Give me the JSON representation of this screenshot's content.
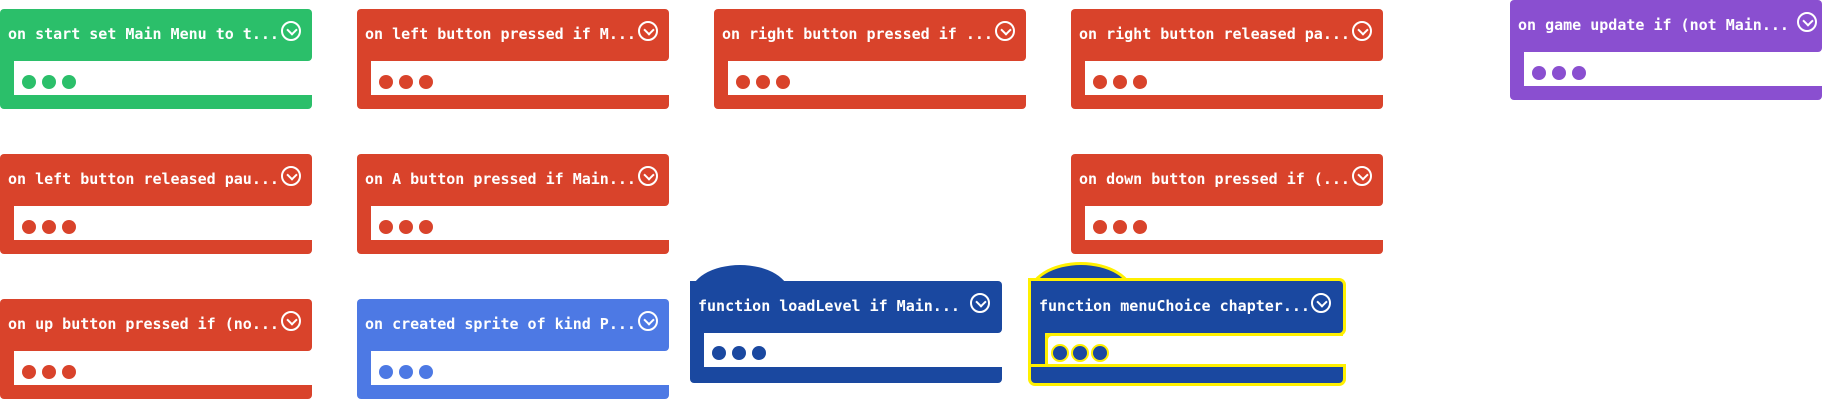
{
  "colors": {
    "events_red": "#d9432b",
    "start_green": "#2bbf6a",
    "game_purple": "#8a4fd0",
    "sprites_blue": "#4d79e4",
    "functions_navy": "#1a48a0",
    "highlight_yellow": "#fff000"
  },
  "blocks": [
    {
      "label": "on start set Main Menu to t...",
      "color": "start_green"
    },
    {
      "label": "on left button pressed if M...",
      "color": "events_red"
    },
    {
      "label": "on right button pressed if ...",
      "color": "events_red"
    },
    {
      "label": "on right button released pa...",
      "color": "events_red"
    },
    {
      "label": "on game update if (not Main...",
      "color": "game_purple"
    },
    {
      "label": "on left button released pau...",
      "color": "events_red"
    },
    {
      "label": "on A button pressed if Main...",
      "color": "events_red"
    },
    {
      "label": "on down button pressed if (...",
      "color": "events_red"
    },
    {
      "label": "function loadLevel  if Main...",
      "color": "functions_navy"
    },
    {
      "label": "function menuChoice chapter...",
      "color": "functions_navy",
      "selected": true
    },
    {
      "label": "on up button pressed if (no...",
      "color": "events_red"
    },
    {
      "label": "on created sprite of kind P...",
      "color": "sprites_blue"
    }
  ],
  "collapse_icon": "chevron-down-circle-icon",
  "collapsed_icon": "ellipsis-dots-icon"
}
